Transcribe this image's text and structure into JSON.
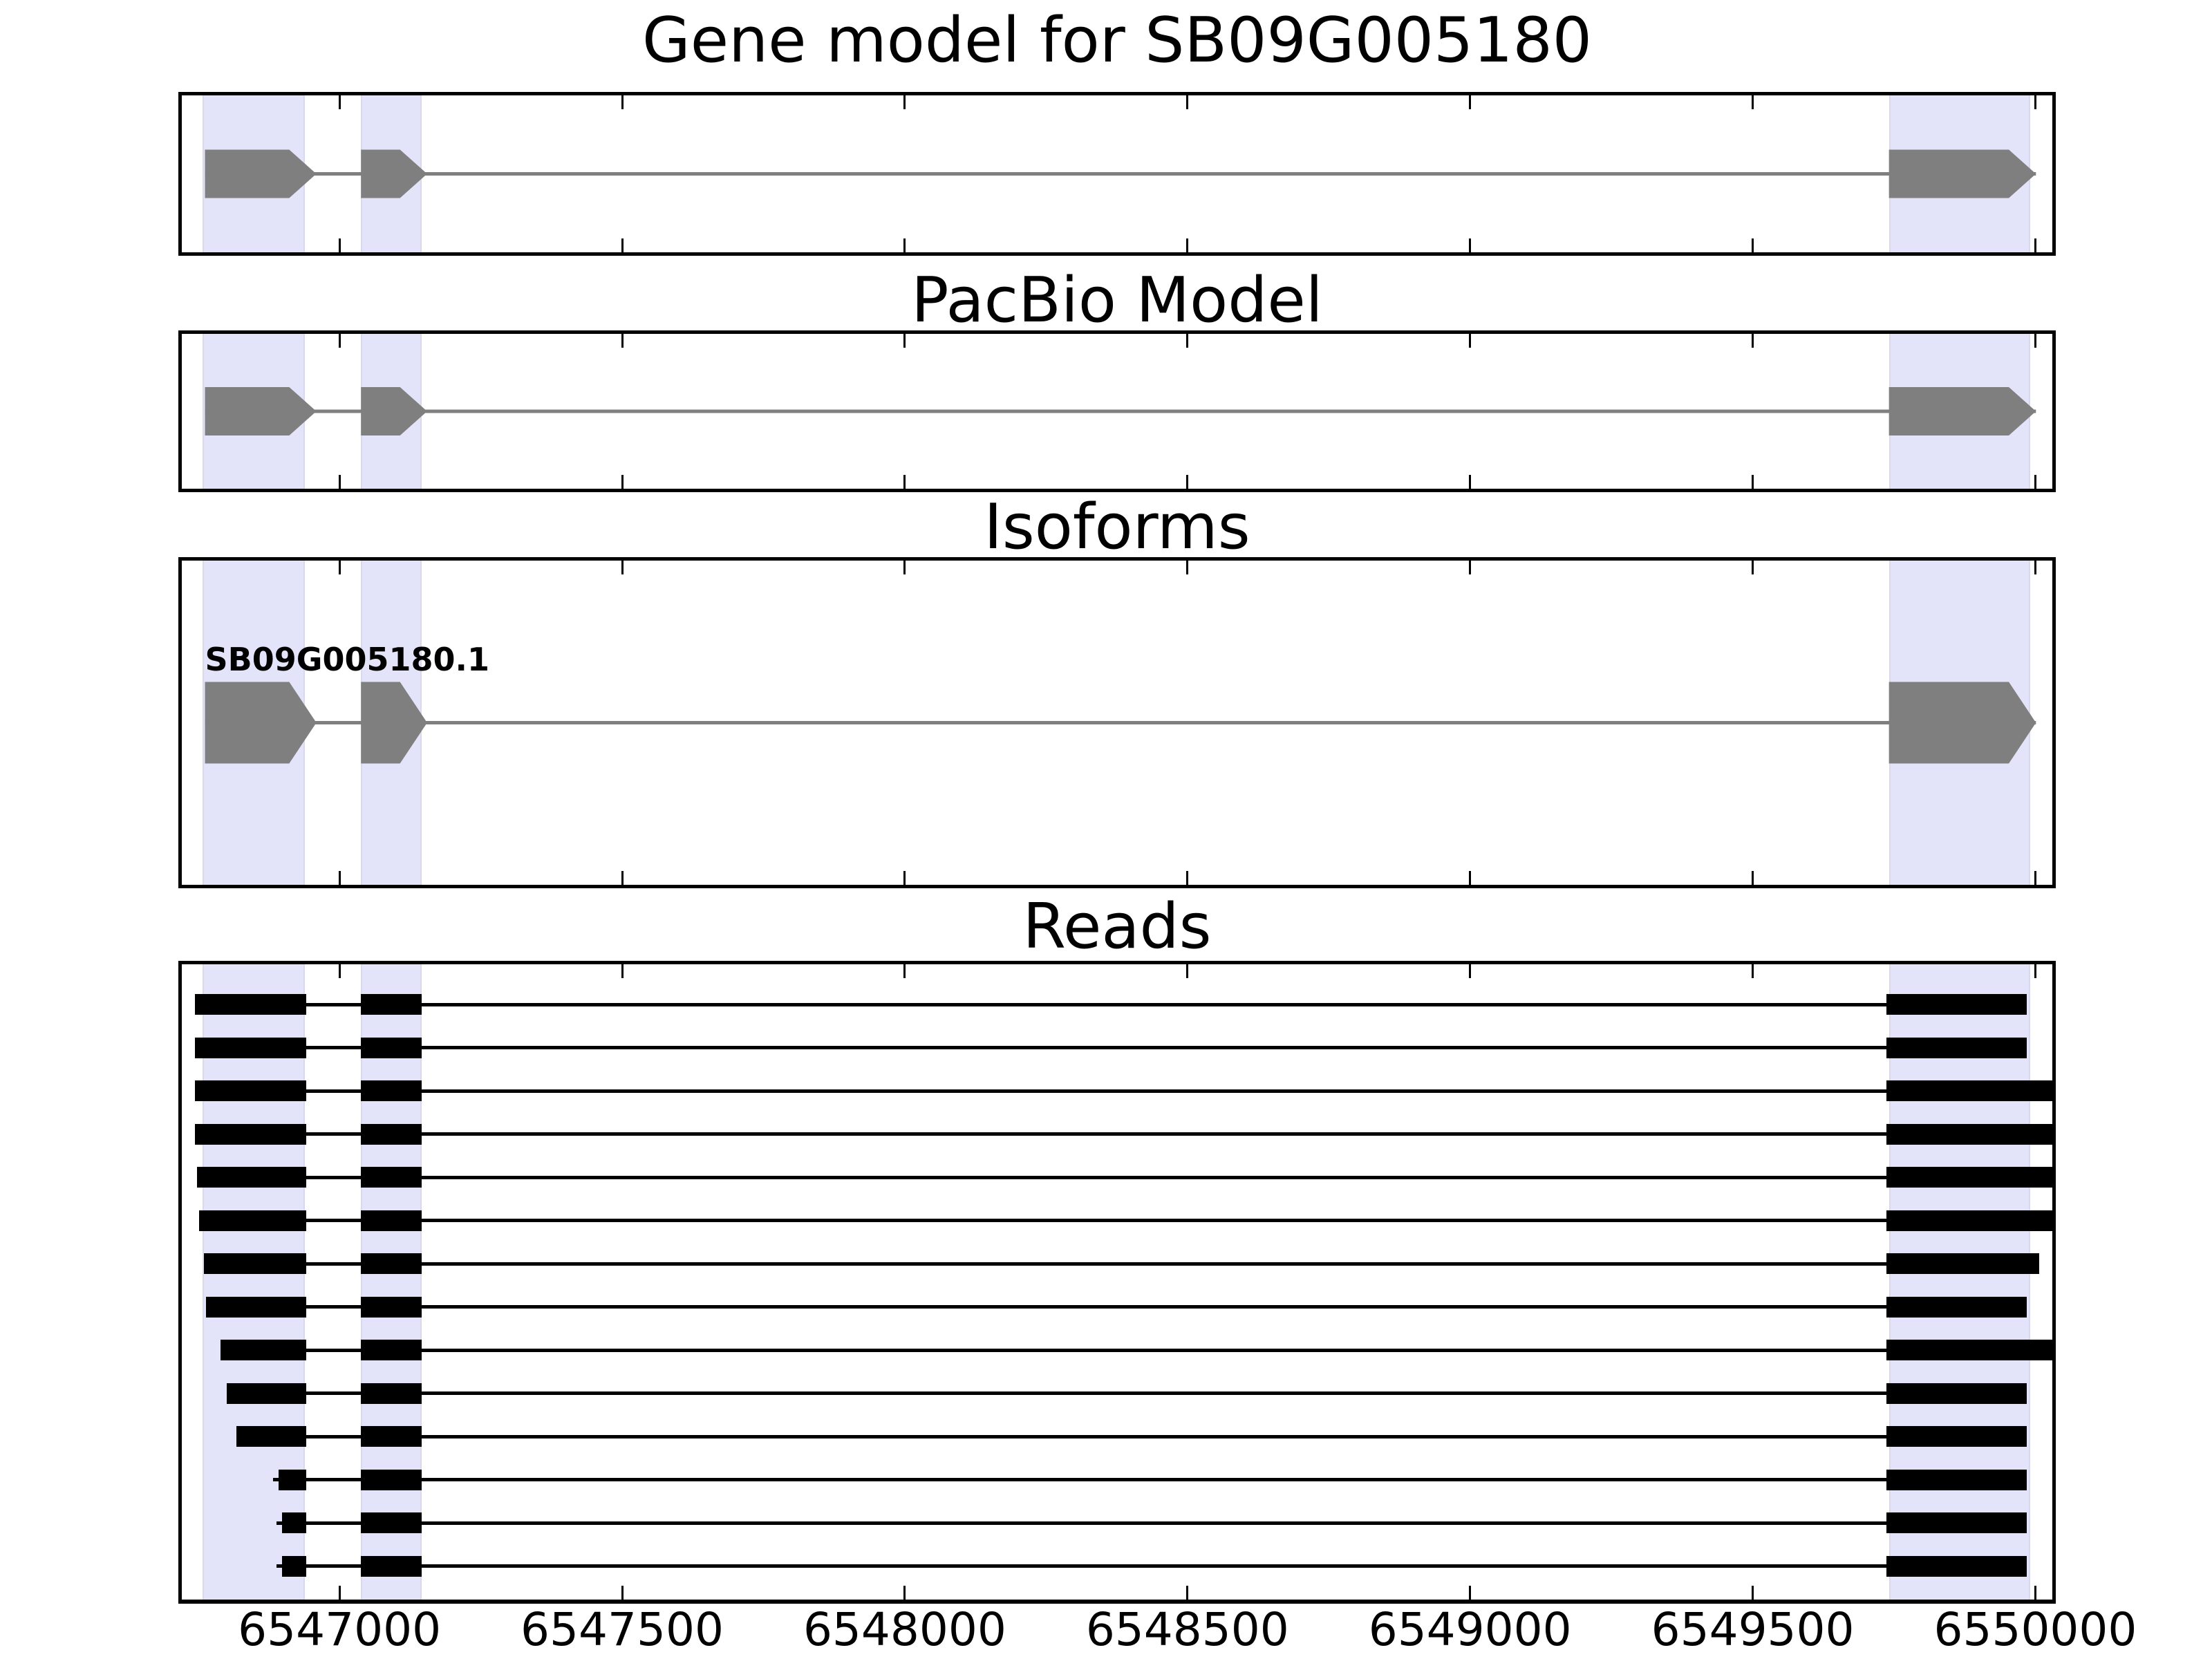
{
  "figure": {
    "title": "Gene model for SB09G005180",
    "background": "#ffffff"
  },
  "colors": {
    "highlight_band": "#e3e3f9",
    "highlight_band_edge": "#d9d9ee",
    "exon_gray": "#7f7f7f",
    "intron_gray": "#7f7f7f",
    "read_black": "#000000",
    "panel_border": "#000000",
    "text": "#000000"
  },
  "chart_data": {
    "type": "table",
    "title": "Gene model for SB09G005180",
    "panel_titles": [
      "Gene model for SB09G005180",
      "PacBio Model",
      "Isoforms",
      "Reads"
    ],
    "x_range": [
      6546721,
      6550030
    ],
    "x_ticks": [
      6547000,
      6547500,
      6548000,
      6548500,
      6549000,
      6549500,
      6550000
    ],
    "x_tick_labels": [
      "6547000",
      "6547500",
      "6548000",
      "6548500",
      "6549000",
      "6549500",
      "6550000"
    ],
    "grid": false,
    "legend": false,
    "highlight_regions": [
      [
        6546758,
        6546939
      ],
      [
        6547038,
        6547145
      ],
      [
        6549741,
        6549991
      ]
    ],
    "gene_model": {
      "strand": "forward",
      "arrow_tip_bp": 48,
      "exons": [
        [
          6546762,
          6546959
        ],
        [
          6547038,
          6547155
        ],
        [
          6549741,
          6550001
        ]
      ],
      "span": [
        6546762,
        6550001
      ]
    },
    "isoforms": [
      {
        "name": "SB09G005180.1",
        "arrow_tip_bp": 48,
        "exons": [
          [
            6546762,
            6546959
          ],
          [
            6547038,
            6547155
          ],
          [
            6549741,
            6550001
          ]
        ]
      }
    ],
    "reads": {
      "shared_junctions": {
        "exon1_end": 6546941,
        "exon2_start": 6547038,
        "exon2_end": 6547145,
        "exon3_start": 6549736
      },
      "items": [
        {
          "start": 6546744,
          "end": 6549985,
          "stub": false
        },
        {
          "start": 6546744,
          "end": 6549985,
          "stub": false
        },
        {
          "start": 6546744,
          "end": 6550036,
          "stub": false
        },
        {
          "start": 6546744,
          "end": 6550036,
          "stub": false
        },
        {
          "start": 6546748,
          "end": 6550036,
          "stub": false
        },
        {
          "start": 6546752,
          "end": 6550036,
          "stub": false
        },
        {
          "start": 6546760,
          "end": 6550007,
          "stub": false
        },
        {
          "start": 6546764,
          "end": 6549985,
          "stub": false
        },
        {
          "start": 6546790,
          "end": 6550036,
          "stub": false
        },
        {
          "start": 6546800,
          "end": 6549985,
          "stub": false
        },
        {
          "start": 6546817,
          "end": 6549985,
          "stub": false
        },
        {
          "start": 6546892,
          "end": 6549985,
          "stub": true
        },
        {
          "start": 6546898,
          "end": 6549985,
          "stub": true
        },
        {
          "start": 6546898,
          "end": 6549985,
          "stub": true
        }
      ]
    }
  }
}
